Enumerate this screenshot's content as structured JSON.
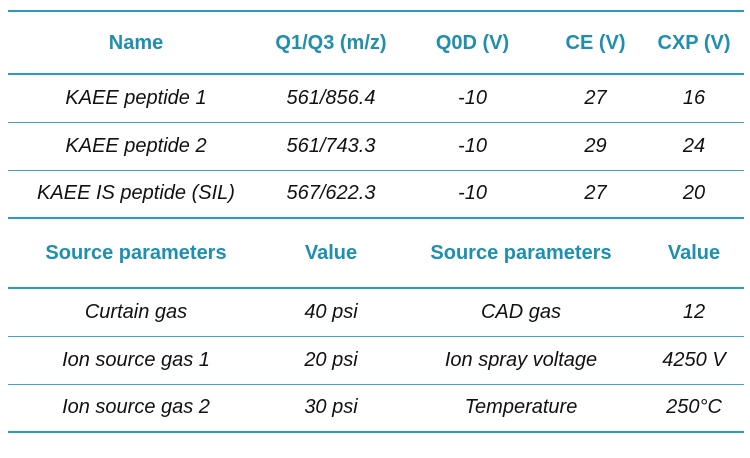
{
  "table1": {
    "headers": [
      "Name",
      "Q1/Q3 (m/z)",
      "Q0D (V)",
      "CE (V)",
      "CXP (V)"
    ],
    "rows": [
      [
        "KAEE peptide 1",
        "561/856.4",
        "-10",
        "27",
        "16"
      ],
      [
        "KAEE peptide 2",
        "561/743.3",
        "-10",
        "29",
        "24"
      ],
      [
        "KAEE IS peptide (SIL)",
        "567/622.3",
        "-10",
        "27",
        "20"
      ]
    ]
  },
  "table2": {
    "headers": [
      "Source parameters",
      "Value",
      "Source parameters",
      "Value"
    ],
    "rows": [
      [
        "Curtain gas",
        "40 psi",
        "CAD gas",
        "12"
      ],
      [
        "Ion source gas 1",
        "20 psi",
        "Ion spray voltage",
        "4250 V"
      ],
      [
        "Ion source gas 2",
        "30 psi",
        "Temperature",
        "250°C"
      ]
    ]
  },
  "colors": {
    "header_text": "#1f8fb0",
    "rule": "#2b9cc0"
  }
}
